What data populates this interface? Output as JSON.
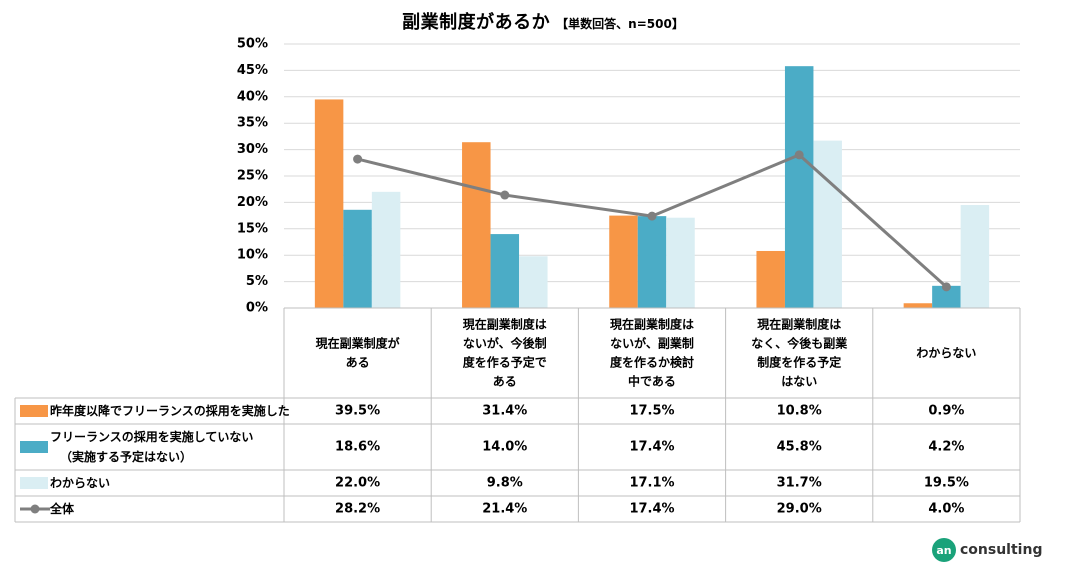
{
  "chart_data": {
    "type": "bar",
    "title": "副業制度があるか",
    "subtitle": "【単数回答、n=500】",
    "categories": [
      [
        "現在副業制度が",
        "ある"
      ],
      [
        "現在副業制度は",
        "ないが、今後制",
        "度を作る予定で",
        "ある"
      ],
      [
        "現在副業制度は",
        "ないが、副業制",
        "度を作るか検討",
        "中である"
      ],
      [
        "現在副業制度は",
        "なく、今後も副業",
        "制度を作る予定",
        "はない"
      ],
      [
        "わからない"
      ]
    ],
    "ylim": [
      0,
      50
    ],
    "yticks": [
      "0%",
      "5%",
      "10%",
      "15%",
      "20%",
      "25%",
      "30%",
      "35%",
      "40%",
      "45%",
      "50%"
    ],
    "series": [
      {
        "name": [
          "昨年度以降でフリーランスの採用を実施した"
        ],
        "type": "bar",
        "color": "#f79646",
        "values": [
          39.5,
          31.4,
          17.5,
          10.8,
          0.9
        ],
        "labels": [
          "39.5%",
          "31.4%",
          "17.5%",
          "10.8%",
          "0.9%"
        ]
      },
      {
        "name": [
          "フリーランスの採用を実施していない",
          "（実施する予定はない）"
        ],
        "type": "bar",
        "color": "#4bacc6",
        "values": [
          18.6,
          14.0,
          17.4,
          45.8,
          4.2
        ],
        "labels": [
          "18.6%",
          "14.0%",
          "17.4%",
          "45.8%",
          "4.2%"
        ]
      },
      {
        "name": [
          "わからない"
        ],
        "type": "bar",
        "color": "#daeef3",
        "values": [
          22.0,
          9.8,
          17.1,
          31.7,
          19.5
        ],
        "labels": [
          "22.0%",
          "9.8%",
          "17.1%",
          "31.7%",
          "19.5%"
        ]
      },
      {
        "name": [
          "全体"
        ],
        "type": "line",
        "color": "#7f7f7f",
        "values": [
          28.2,
          21.4,
          17.4,
          29.0,
          4.0
        ],
        "labels": [
          "28.2%",
          "21.4%",
          "17.4%",
          "29.0%",
          "4.0%"
        ]
      }
    ]
  },
  "brand": {
    "badge": "an",
    "name": "consulting",
    "color": "#1aa27a"
  }
}
